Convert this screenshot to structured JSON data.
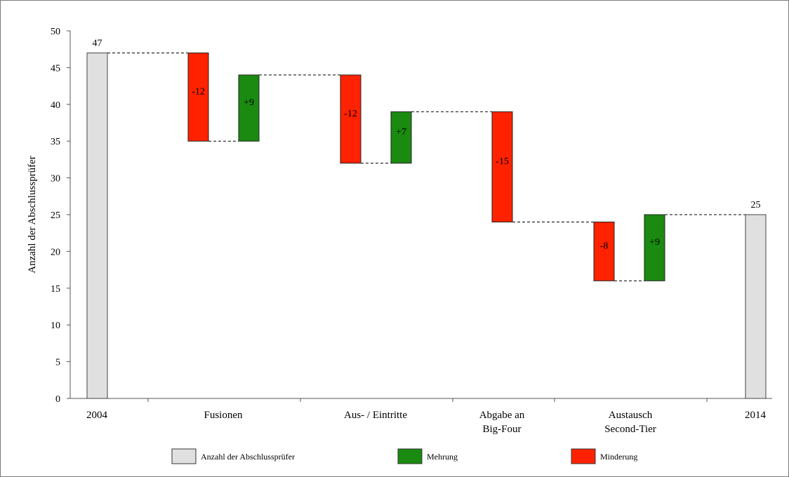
{
  "chart_data": {
    "type": "bar",
    "ylabel": "Anzahl der Abschlussprüfer",
    "ylim": [
      0,
      50
    ],
    "yticks": [
      0,
      5,
      10,
      15,
      20,
      25,
      30,
      35,
      40,
      45,
      50
    ],
    "categories": [
      {
        "id": "c2004",
        "lines": [
          "2004"
        ]
      },
      {
        "id": "fusionen",
        "lines": [
          "Fusionen"
        ]
      },
      {
        "id": "aus-eintritte",
        "lines": [
          "Aus- / Eintritte"
        ]
      },
      {
        "id": "abgabe",
        "lines": [
          "Abgabe an",
          "Big-Four"
        ]
      },
      {
        "id": "austausch",
        "lines": [
          "Austausch",
          "Second-Tier"
        ]
      },
      {
        "id": "c2014",
        "lines": [
          "2014"
        ]
      }
    ],
    "bars": [
      {
        "category": "c2004",
        "kind": "total",
        "from": 0,
        "to": 47,
        "label": "47"
      },
      {
        "category": "fusionen",
        "kind": "decrease",
        "from": 47,
        "to": 35,
        "label": "-12"
      },
      {
        "category": "fusionen",
        "kind": "increase",
        "from": 35,
        "to": 44,
        "label": "+9"
      },
      {
        "category": "aus-eintritte",
        "kind": "decrease",
        "from": 44,
        "to": 32,
        "label": "-12"
      },
      {
        "category": "aus-eintritte",
        "kind": "increase",
        "from": 32,
        "to": 39,
        "label": "+7"
      },
      {
        "category": "abgabe",
        "kind": "decrease",
        "from": 39,
        "to": 24,
        "label": "-15"
      },
      {
        "category": "austausch",
        "kind": "decrease",
        "from": 24,
        "to": 16,
        "label": "-8"
      },
      {
        "category": "austausch",
        "kind": "increase",
        "from": 16,
        "to": 25,
        "label": "+9"
      },
      {
        "category": "c2014",
        "kind": "total",
        "from": 0,
        "to": 25,
        "label": "25"
      }
    ],
    "legend": [
      {
        "kind": "total",
        "label": "Anzahl der Abschlussprüfer"
      },
      {
        "kind": "increase",
        "label": "Mehrung"
      },
      {
        "kind": "decrease",
        "label": "Minderung"
      }
    ],
    "legend_position": "bottom",
    "colors": {
      "total": "#e0e0e0",
      "increase": "#1a8a10",
      "decrease": "#ff2200"
    }
  }
}
